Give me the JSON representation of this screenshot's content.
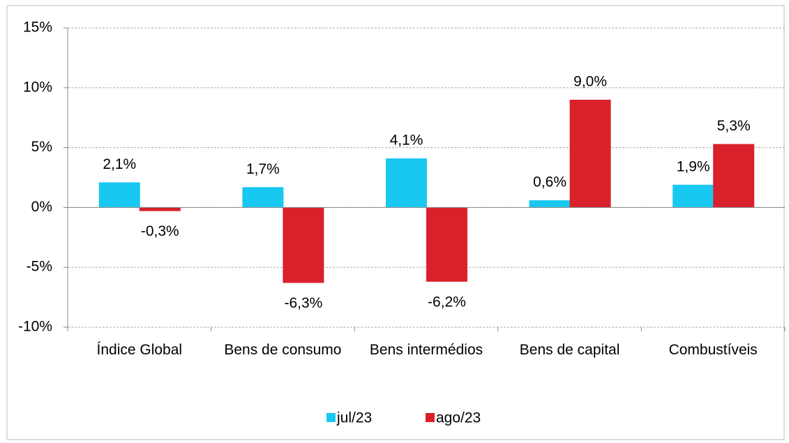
{
  "chart_data": {
    "type": "bar",
    "categories": [
      "Índice Global",
      "Bens de consumo",
      "Bens intermédios",
      "Bens de capital",
      "Combustíveis"
    ],
    "series": [
      {
        "name": "jul/23",
        "color": "#19c8f0",
        "values": [
          2.1,
          1.7,
          4.1,
          0.6,
          1.9
        ],
        "value_labels": [
          "2,1%",
          "1,7%",
          "4,1%",
          "0,6%",
          "1,9%"
        ]
      },
      {
        "name": "ago/23",
        "color": "#d9212b",
        "values": [
          -0.3,
          -6.3,
          -6.2,
          9.0,
          5.3
        ],
        "value_labels": [
          "-0,3%",
          "-6,3%",
          "-6,2%",
          "9,0%",
          "5,3%"
        ]
      }
    ],
    "ylim": [
      -10,
      15
    ],
    "yticks": [
      {
        "value": -10,
        "label": "-10%"
      },
      {
        "value": -5,
        "label": "-5%"
      },
      {
        "value": 0,
        "label": "0%"
      },
      {
        "value": 5,
        "label": "5%"
      },
      {
        "value": 10,
        "label": "10%"
      },
      {
        "value": 15,
        "label": "15%"
      }
    ],
    "grid": true,
    "legend": "bottom"
  }
}
